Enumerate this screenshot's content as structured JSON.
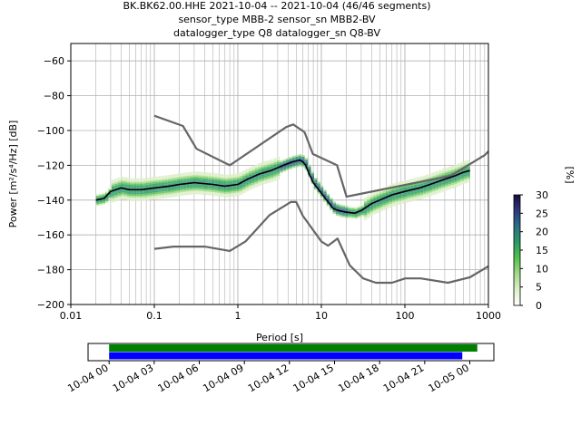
{
  "title": {
    "line1": "BK.BK62.00.HHE   2021-10-04 -- 2021-10-04  (46/46 segments)",
    "line2": "sensor_type MBB-2 sensor_sn MBB2-BV",
    "line3": "datalogger_type Q8 datalogger_sn Q8-BV"
  },
  "chart_data": [
    {
      "type": "line",
      "subtype": "probabilistic-psd",
      "xlabel": "Period [s]",
      "ylabel": "Power [m²/s⁴/Hz] [dB]",
      "x_scale": "log",
      "xlim": [
        0.01,
        1000
      ],
      "ylim": [
        -200,
        -50
      ],
      "grid": true,
      "x_tick_labels": [
        "0.01",
        "0.1",
        "1",
        "10",
        "100",
        "1000"
      ],
      "y_ticks": [
        -200,
        -180,
        -160,
        -140,
        -120,
        -100,
        -80,
        -60
      ],
      "colorbar": {
        "label": "[%]",
        "range": [
          0,
          30
        ],
        "ticks": [
          0,
          5,
          10,
          15,
          20,
          25,
          30
        ],
        "colors": [
          "#ffffff",
          "#dcefc8",
          "#a2d98a",
          "#52c24e",
          "#2a9a64",
          "#2c6f86",
          "#2c3a7e",
          "#1a0b40"
        ]
      },
      "series": [
        {
          "role": "high-noise-model",
          "color": "#666666",
          "x": [
            0.1,
            0.22,
            0.32,
            0.8,
            3.8,
            4.6,
            6.3,
            7.9,
            15.4,
            20,
            354.8,
            912,
            1000
          ],
          "y": [
            -91.5,
            -97.4,
            -110.5,
            -120,
            -98,
            -96.5,
            -101,
            -113.5,
            -120,
            -138,
            -126,
            -114,
            -112
          ]
        },
        {
          "role": "low-noise-model",
          "color": "#666666",
          "x": [
            0.1,
            0.17,
            0.4,
            0.8,
            1.24,
            2.4,
            4.3,
            5,
            6,
            10,
            12,
            15.6,
            21.9,
            31.6,
            45,
            70,
            101,
            154,
            328,
            600,
            1000
          ],
          "y": [
            -168,
            -166.7,
            -166.7,
            -169.2,
            -163.7,
            -148.6,
            -141.1,
            -141.1,
            -149,
            -163.8,
            -166.2,
            -162.1,
            -177.5,
            -185,
            -187.5,
            -187.5,
            -185,
            -185,
            -187.5,
            -184.4,
            -178
          ]
        },
        {
          "role": "mode",
          "color": "#000000",
          "x": [
            0.02,
            0.025,
            0.03,
            0.04,
            0.05,
            0.07,
            0.1,
            0.15,
            0.2,
            0.3,
            0.5,
            0.7,
            1,
            1.3,
            1.8,
            2.5,
            3.5,
            4.5,
            5,
            5.5,
            6,
            6.5,
            7,
            8,
            10,
            12,
            14,
            16,
            20,
            25,
            30,
            40,
            50,
            70,
            100,
            150,
            200,
            300,
            400,
            500,
            600
          ],
          "y": [
            -140,
            -139,
            -135,
            -133,
            -134,
            -134,
            -133,
            -132,
            -131,
            -130,
            -131,
            -132,
            -131,
            -128,
            -125,
            -123,
            -120,
            -118,
            -117.5,
            -117,
            -118,
            -120,
            -124,
            -130,
            -136,
            -141,
            -145,
            -146,
            -147,
            -147.5,
            -146,
            -142,
            -140,
            -137,
            -135,
            -133,
            -131,
            -128,
            -126,
            -124,
            -123
          ]
        }
      ]
    },
    {
      "type": "timeline",
      "x_tick_labels": [
        "10-04 00",
        "10-04 03",
        "10-04 06",
        "10-04 09",
        "10-04 12",
        "10-04 15",
        "10-04 18",
        "10-04 21",
        "10-05 00"
      ],
      "bars": [
        {
          "color": "#008000",
          "start_hour": 0,
          "end_hour": 24.5
        },
        {
          "color": "#0000ff",
          "start_hour": 0,
          "end_hour": 23.5
        }
      ]
    }
  ]
}
